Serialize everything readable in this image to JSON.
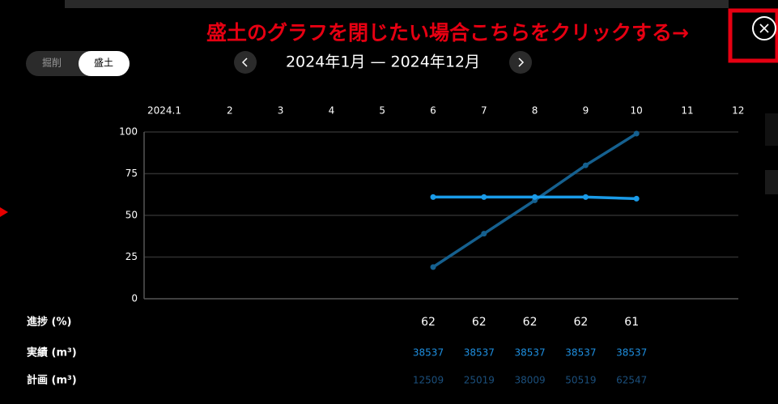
{
  "annotation": "盛土のグラフを閉じたい場合こちらをクリックする→",
  "toggle": {
    "options": [
      "掘削",
      "盛土"
    ],
    "selected": 1
  },
  "date_range": "2024年1月 — 2024年12月",
  "chart_data": {
    "type": "line",
    "categories": [
      "2024.1",
      "2",
      "3",
      "4",
      "5",
      "6",
      "7",
      "8",
      "9",
      "10",
      "11",
      "12"
    ],
    "series": [
      {
        "color": "#15608f",
        "values": [
          null,
          null,
          null,
          null,
          null,
          19,
          39,
          59,
          80,
          99,
          null,
          null
        ]
      },
      {
        "color": "#1a9be8",
        "values": [
          null,
          null,
          null,
          null,
          null,
          61,
          61,
          61,
          61,
          60,
          null,
          null
        ]
      }
    ],
    "ylim": [
      0,
      100
    ],
    "yticks": [
      0,
      25,
      50,
      75,
      100
    ],
    "grid": true
  },
  "table": {
    "rows": [
      {
        "label": "進捗 (%)",
        "color": "#ffffff",
        "values": [
          null,
          null,
          null,
          null,
          null,
          62,
          62,
          62,
          62,
          61,
          null,
          null
        ]
      },
      {
        "label": "実績 (m³)",
        "color": "#1e8fe0",
        "values": [
          null,
          null,
          null,
          null,
          null,
          38537,
          38537,
          38537,
          38537,
          38537,
          null,
          null
        ]
      },
      {
        "label": "計画 (m³)",
        "color": "#1b4f7c",
        "values": [
          null,
          null,
          null,
          null,
          null,
          12509,
          25019,
          38009,
          50519,
          62547,
          null,
          null
        ]
      }
    ]
  }
}
